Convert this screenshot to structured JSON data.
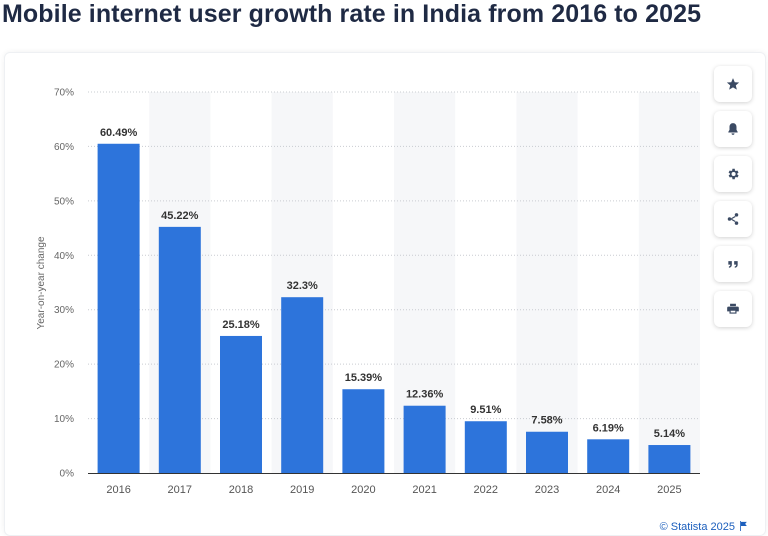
{
  "page": {
    "title": "Mobile internet user growth rate in India from 2016 to 2025"
  },
  "toolbar": {
    "buttons": [
      {
        "icon": "star-icon"
      },
      {
        "icon": "bell-icon"
      },
      {
        "icon": "gear-icon"
      },
      {
        "icon": "share-icon"
      },
      {
        "icon": "quote-icon"
      },
      {
        "icon": "print-icon"
      }
    ]
  },
  "credit": {
    "text": "© Statista 2025"
  },
  "chart_data": {
    "type": "bar",
    "title": "Mobile internet user growth rate in India from 2016 to 2025",
    "xlabel": "",
    "ylabel": "Year-on-year change",
    "categories": [
      "2016",
      "2017",
      "2018",
      "2019",
      "2020",
      "2021",
      "2022",
      "2023",
      "2024",
      "2025"
    ],
    "values": [
      60.49,
      45.22,
      25.18,
      32.3,
      15.39,
      12.36,
      9.51,
      7.58,
      6.19,
      5.14
    ],
    "data_labels": [
      "60.49%",
      "45.22%",
      "25.18%",
      "32.3%",
      "15.39%",
      "12.36%",
      "9.51%",
      "7.58%",
      "6.19%",
      "5.14%"
    ],
    "ylim": [
      0,
      70
    ],
    "yticks": [
      0,
      10,
      20,
      30,
      40,
      50,
      60,
      70
    ],
    "ytick_labels": [
      "0%",
      "10%",
      "20%",
      "30%",
      "40%",
      "50%",
      "60%",
      "70%"
    ],
    "grid": true,
    "legend": "none",
    "bar_color": "#2d74db",
    "band_color": "#f6f7f9"
  }
}
